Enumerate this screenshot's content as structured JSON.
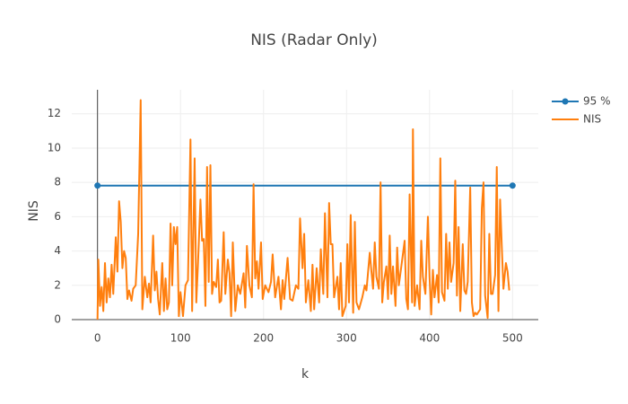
{
  "chart_data": {
    "type": "line",
    "title": "NIS (Radar Only)",
    "x_label": "k",
    "y_label": "NIS",
    "xlim": [
      -31,
      531
    ],
    "ylim": [
      0,
      13.4
    ],
    "xticks": [
      0,
      100,
      200,
      300,
      400,
      500
    ],
    "yticks": [
      0,
      2,
      4,
      6,
      8,
      10,
      12
    ],
    "grid": true,
    "legend": "right",
    "series": [
      {
        "name": "95 %",
        "color": "#1f77b4",
        "markers": true,
        "x": [
          0,
          500
        ],
        "values": [
          7.815,
          7.815
        ]
      },
      {
        "name": "NIS",
        "color": "#ff7f0e",
        "markers": false,
        "x": [
          0,
          1,
          3,
          5,
          7,
          9,
          11,
          13,
          15,
          17,
          19,
          22,
          24,
          26,
          28,
          30,
          32,
          34,
          36,
          38,
          41,
          43,
          46,
          49,
          52,
          54,
          57,
          60,
          62,
          64,
          67,
          69,
          71,
          73,
          75,
          78,
          80,
          82,
          84,
          86,
          88,
          90,
          92,
          94,
          96,
          98,
          100,
          103,
          106,
          109,
          112,
          114,
          117,
          119,
          121,
          124,
          126,
          128,
          130,
          132,
          134,
          136,
          138,
          140,
          143,
          145,
          147,
          149,
          152,
          154,
          157,
          159,
          161,
          163,
          166,
          169,
          172,
          176,
          178,
          180,
          183,
          186,
          188,
          190,
          192,
          194,
          197,
          199,
          202,
          206,
          209,
          211,
          214,
          218,
          221,
          223,
          225,
          229,
          232,
          235,
          239,
          242,
          244,
          247,
          249,
          251,
          254,
          257,
          259,
          261,
          264,
          267,
          269,
          272,
          274,
          277,
          279,
          281,
          283,
          285,
          289,
          291,
          293,
          295,
          299,
          301,
          303,
          305,
          308,
          310,
          312,
          315,
          319,
          322,
          324,
          328,
          330,
          332,
          334,
          336,
          339,
          341,
          343,
          345,
          348,
          350,
          352,
          354,
          356,
          359,
          361,
          363,
          366,
          370,
          372,
          374,
          376,
          379,
          380,
          382,
          385,
          388,
          390,
          392,
          395,
          398,
          400,
          402,
          404,
          406,
          409,
          411,
          413,
          415,
          418,
          420,
          422,
          424,
          426,
          429,
          431,
          433,
          435,
          437,
          440,
          442,
          444,
          446,
          449,
          451,
          453,
          455,
          457,
          461,
          463,
          465,
          467,
          470,
          472,
          474,
          476,
          479,
          481,
          483,
          485,
          487,
          489,
          492,
          494,
          496
        ],
        "values": [
          0,
          3.5,
          0.8,
          1.9,
          0.5,
          3.3,
          1.0,
          2.4,
          1.3,
          3.2,
          1.5,
          4.8,
          2.8,
          6.9,
          5.7,
          3.0,
          4.0,
          3.6,
          1.2,
          1.7,
          1.1,
          1.8,
          2.0,
          5.0,
          12.8,
          0.6,
          2.5,
          1.3,
          2.1,
          1.0,
          4.9,
          1.7,
          2.8,
          1.2,
          0.3,
          3.3,
          0.5,
          2.4,
          0.6,
          1.0,
          5.6,
          2.0,
          5.4,
          4.4,
          5.4,
          0.2,
          1.6,
          0.2,
          2.0,
          2.3,
          10.5,
          0.5,
          9.4,
          1.0,
          3.2,
          7.0,
          4.6,
          4.7,
          0.8,
          8.9,
          2.2,
          9.0,
          1.5,
          2.2,
          1.9,
          3.5,
          1.0,
          1.1,
          5.1,
          1.5,
          3.5,
          2.7,
          0.2,
          4.5,
          0.5,
          2.0,
          1.5,
          2.7,
          0.7,
          4.3,
          2.0,
          1.3,
          7.9,
          2.4,
          3.4,
          1.8,
          4.5,
          1.2,
          2.0,
          1.6,
          2.2,
          3.8,
          1.3,
          2.5,
          0.6,
          2.3,
          1.2,
          3.6,
          1.2,
          1.1,
          2.0,
          1.8,
          5.9,
          3.0,
          5.0,
          1.0,
          2.3,
          0.5,
          3.2,
          0.6,
          3.0,
          1.0,
          4.1,
          1.5,
          6.2,
          1.3,
          6.8,
          4.4,
          4.4,
          1.3,
          2.5,
          0.6,
          3.3,
          0.2,
          0.8,
          4.4,
          1.0,
          6.1,
          0.4,
          5.7,
          1.0,
          0.6,
          1.3,
          2.0,
          1.7,
          3.9,
          2.8,
          1.8,
          4.5,
          2.5,
          1.8,
          8.0,
          1.0,
          2.2,
          3.1,
          1.2,
          4.9,
          1.5,
          3.1,
          0.8,
          4.2,
          2.0,
          3.1,
          4.6,
          1.2,
          0.6,
          7.3,
          1.0,
          11.1,
          0.8,
          2.0,
          0.6,
          4.6,
          2.5,
          1.5,
          6.0,
          2.5,
          0.3,
          2.9,
          1.3,
          2.6,
          1.0,
          9.4,
          1.6,
          1.1,
          5.0,
          1.8,
          4.5,
          2.2,
          3.3,
          8.1,
          1.4,
          5.4,
          0.5,
          4.4,
          1.7,
          1.5,
          2.2,
          7.7,
          1.0,
          0.2,
          0.4,
          0.3,
          0.6,
          6.5,
          8.0,
          1.4,
          0.1,
          5.0,
          1.5,
          1.5,
          2.6,
          8.9,
          0.5,
          7.0,
          4.3,
          1.8,
          3.3,
          2.8,
          1.7
        ]
      }
    ]
  }
}
